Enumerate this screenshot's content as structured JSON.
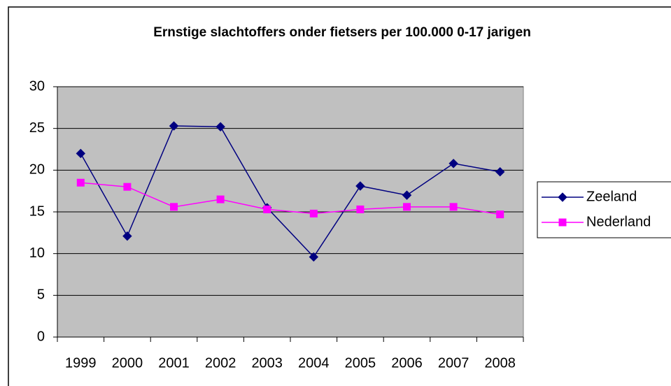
{
  "chart_data": {
    "type": "line",
    "title": "Ernstige slachtoffers onder fietsers per 100.000 0-17 jarigen",
    "categories": [
      "1999",
      "2000",
      "2001",
      "2002",
      "2003",
      "2004",
      "2005",
      "2006",
      "2007",
      "2008"
    ],
    "series": [
      {
        "name": "Zeeland",
        "color": "#000080",
        "marker": "diamond",
        "values": [
          22,
          12.1,
          25.3,
          25.2,
          15.5,
          9.6,
          18.1,
          17,
          20.8,
          19.8
        ]
      },
      {
        "name": "Nederland",
        "color": "#ff00ff",
        "marker": "square",
        "values": [
          18.5,
          18,
          15.6,
          16.5,
          15.3,
          14.8,
          15.3,
          15.6,
          15.6,
          14.7
        ]
      }
    ],
    "ylim": [
      0,
      30
    ],
    "yticks": [
      0,
      5,
      10,
      15,
      20,
      25,
      30
    ],
    "grid": true,
    "legend": "right"
  }
}
